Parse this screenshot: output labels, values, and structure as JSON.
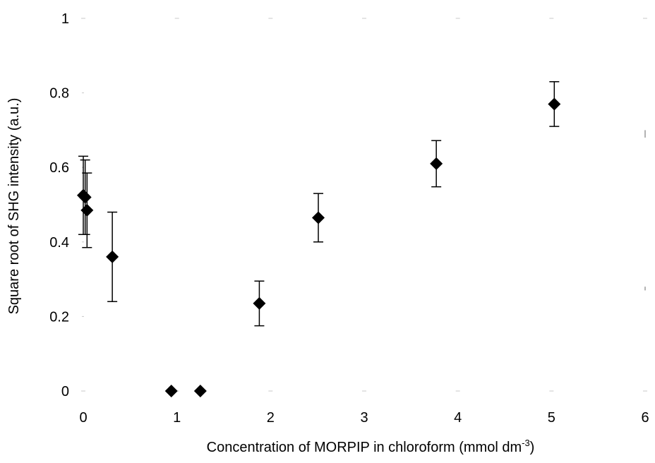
{
  "chart_data": {
    "type": "scatter",
    "xlabel": {
      "main": "Concentration of MORPIP in chloroform (mmol dm",
      "superscript": "-3",
      "close": ")"
    },
    "ylabel": "Square root of SHG intensity (a.u.)",
    "xlim": [
      0,
      6
    ],
    "ylim": [
      0,
      1
    ],
    "x_ticks": [
      "0",
      "1",
      "2",
      "3",
      "4",
      "5",
      "6"
    ],
    "y_ticks": [
      "0",
      "0.2",
      "0.4",
      "0.6",
      "0.8",
      "1"
    ],
    "grid": false,
    "marker": "diamond",
    "marker_color": "#000000",
    "points": [
      {
        "x": 0.0,
        "y": 0.525,
        "err": 0.105
      },
      {
        "x": 0.02,
        "y": 0.52,
        "err": 0.1
      },
      {
        "x": 0.04,
        "y": 0.485,
        "err": 0.1
      },
      {
        "x": 0.31,
        "y": 0.36,
        "err": 0.12
      },
      {
        "x": 0.94,
        "y": 0.0,
        "err": 0
      },
      {
        "x": 1.25,
        "y": 0.0,
        "err": 0
      },
      {
        "x": 1.88,
        "y": 0.235,
        "err": 0.06
      },
      {
        "x": 2.51,
        "y": 0.465,
        "err": 0.065
      },
      {
        "x": 3.77,
        "y": 0.61,
        "err": 0.062
      },
      {
        "x": 5.03,
        "y": 0.77,
        "err": 0.06
      }
    ]
  }
}
